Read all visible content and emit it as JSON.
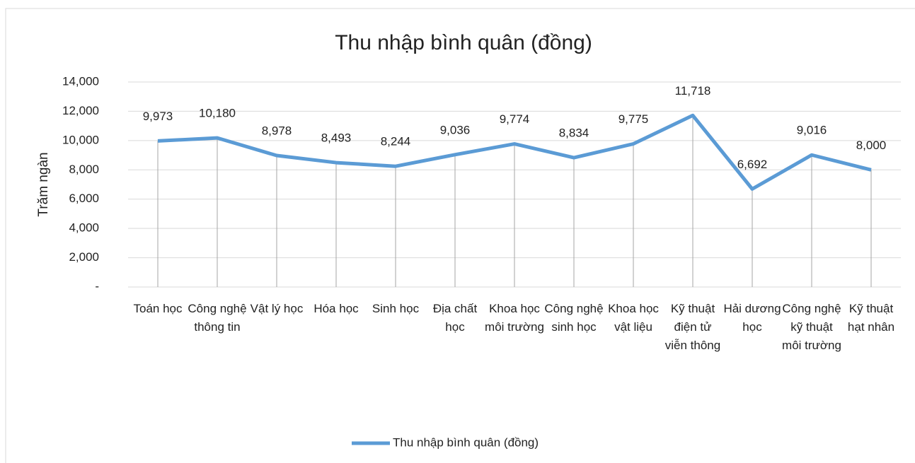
{
  "chart_data": {
    "type": "line",
    "title": "Thu nhập bình quân (đồng)",
    "y_label": "Trăm ngàn",
    "categories": [
      "Toán học",
      "Công nghệ thông tin",
      "Vật lý học",
      "Hóa học",
      "Sinh học",
      "Địa chất học",
      "Khoa học môi trường",
      "Công nghệ sinh học",
      "Khoa học vật liệu",
      "Kỹ thuật điện tử viễn thông",
      "Hải dương học",
      "Công nghệ kỹ thuật môi trường",
      "Kỹ thuật hạt nhân"
    ],
    "series": [
      {
        "name": "Thu nhập bình quân (đồng)",
        "color": "#5b9bd5",
        "values": [
          9973,
          10180,
          8978,
          8493,
          8244,
          9036,
          9774,
          8834,
          9775,
          11718,
          6692,
          9016,
          8000
        ],
        "value_labels": [
          "9,973",
          "10,180",
          "8,978",
          "8,493",
          "8,244",
          "9,036",
          "9,774",
          "8,834",
          "9,775",
          "11,718",
          "6,692",
          "9,016",
          "8,000"
        ]
      }
    ],
    "ylim": [
      0,
      14000
    ],
    "yticks": [
      {
        "value": 0,
        "label": "-"
      },
      {
        "value": 2000,
        "label": "2,000"
      },
      {
        "value": 4000,
        "label": "4,000"
      },
      {
        "value": 6000,
        "label": "6,000"
      },
      {
        "value": 8000,
        "label": "8,000"
      },
      {
        "value": 10000,
        "label": "10,000"
      },
      {
        "value": 12000,
        "label": "12,000"
      },
      {
        "value": 14000,
        "label": "14,000"
      }
    ],
    "grid": true,
    "drop_lines": true,
    "legend": "bottom"
  }
}
